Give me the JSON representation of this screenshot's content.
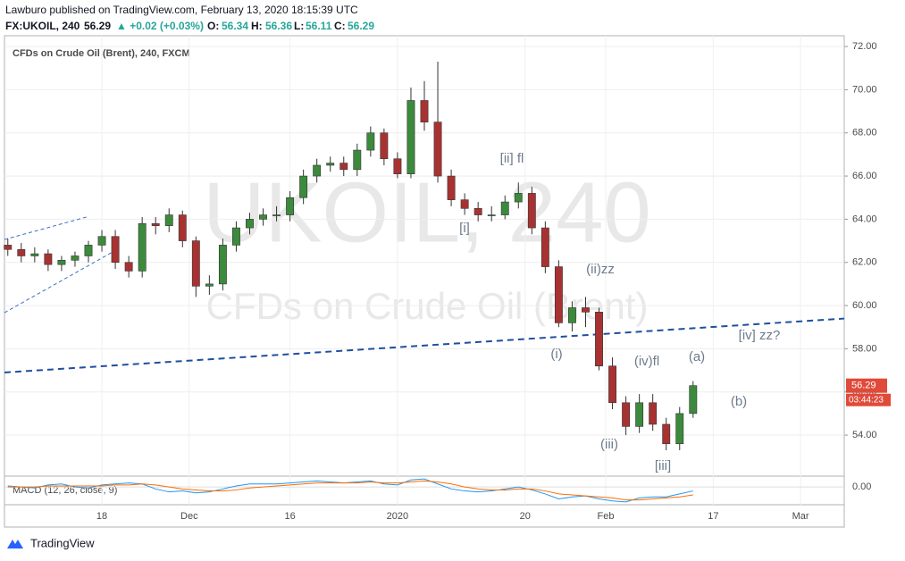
{
  "header": {
    "publisher": "Lawburo published on TradingView.com, February 13, 2020 18:15:39 UTC",
    "symbol": "FX:UKOIL, 240",
    "last": "56.29",
    "change": "▲ +0.02 (+0.03%)",
    "o_label": "O:",
    "open": "56.34",
    "h_label": "H:",
    "high": "56.36",
    "l_label": "L:",
    "low": "56.11",
    "c_label": "C:",
    "close": "56.29"
  },
  "footer": {
    "brand": "TradingView"
  },
  "chart_data": {
    "type": "candlestick",
    "title": "CFDs on Crude Oil (Brent), 240, FXCM",
    "watermark": "UKOIL, 240",
    "watermark_subtitle": "CFDs on Crude Oil (Brent)",
    "countdown": "03:44:23",
    "up_color": "#3c8a3c",
    "down_color": "#a83232",
    "x": [
      4,
      6,
      8,
      10,
      12,
      14,
      16,
      18,
      20,
      22,
      24,
      26,
      28,
      30,
      32,
      34,
      36,
      38,
      40,
      42,
      44,
      46,
      48,
      50,
      52,
      54,
      56,
      58,
      60,
      62,
      64,
      66,
      68,
      70,
      72,
      74,
      76,
      78,
      80,
      82,
      84,
      86,
      88,
      90,
      92,
      94,
      96,
      98,
      100,
      102,
      104,
      106
    ],
    "open": [
      62.8,
      62.6,
      62.3,
      62.4,
      61.9,
      62.1,
      62.3,
      62.8,
      63.2,
      62.0,
      61.6,
      63.8,
      63.7,
      64.2,
      63.0,
      60.9,
      61.0,
      62.8,
      63.6,
      64.0,
      64.2,
      64.2,
      65.0,
      66.0,
      66.5,
      66.6,
      66.3,
      67.2,
      68.0,
      66.8,
      66.1,
      69.5,
      68.5,
      66.0,
      64.9,
      64.5,
      64.2,
      64.2,
      64.8,
      65.2,
      63.6,
      61.8,
      59.2,
      59.9,
      59.7,
      57.2,
      55.5,
      54.4,
      55.5,
      54.5,
      53.6,
      55.0
    ],
    "high": [
      63.1,
      62.9,
      62.7,
      62.6,
      62.3,
      62.5,
      63.0,
      63.5,
      63.5,
      62.3,
      64.1,
      64.1,
      64.5,
      64.4,
      63.2,
      61.4,
      63.1,
      63.9,
      64.3,
      64.5,
      64.6,
      65.3,
      66.3,
      66.8,
      66.9,
      66.9,
      67.5,
      68.3,
      68.2,
      67.1,
      70.1,
      70.4,
      71.3,
      66.3,
      65.2,
      64.8,
      64.6,
      65.1,
      65.7,
      65.5,
      63.9,
      62.1,
      60.2,
      60.4,
      59.9,
      57.6,
      55.8,
      55.9,
      55.9,
      54.8,
      55.3,
      56.5
    ],
    "low": [
      62.3,
      62.0,
      62.0,
      61.6,
      61.6,
      61.8,
      62.0,
      62.5,
      61.7,
      61.3,
      61.3,
      63.3,
      63.4,
      62.7,
      60.4,
      60.5,
      60.7,
      62.5,
      63.3,
      63.7,
      63.9,
      63.9,
      64.7,
      65.7,
      66.2,
      66.0,
      66.0,
      66.9,
      66.5,
      65.9,
      65.9,
      68.1,
      65.7,
      64.6,
      64.2,
      63.9,
      63.9,
      64.0,
      64.5,
      63.3,
      61.5,
      59.0,
      58.8,
      59.0,
      57.0,
      55.2,
      54.0,
      54.1,
      54.2,
      53.3,
      53.3,
      54.8
    ],
    "close": [
      62.6,
      62.3,
      62.4,
      61.9,
      62.1,
      62.3,
      62.8,
      63.2,
      62.0,
      61.6,
      63.8,
      63.7,
      64.2,
      63.0,
      60.9,
      61.0,
      62.8,
      63.6,
      64.0,
      64.2,
      64.2,
      65.0,
      66.0,
      66.5,
      66.6,
      66.3,
      67.2,
      68.0,
      66.8,
      66.1,
      69.5,
      68.5,
      66.0,
      64.9,
      64.5,
      64.2,
      64.2,
      64.8,
      65.2,
      63.6,
      61.8,
      59.2,
      59.9,
      59.7,
      57.2,
      55.5,
      54.4,
      55.5,
      54.5,
      53.6,
      55.0,
      56.29
    ],
    "xlim": [
      3.5,
      128.5
    ],
    "ylim": [
      52.14,
      72.5
    ],
    "xticks": [
      {
        "value": 18,
        "label": "18"
      },
      {
        "value": 31,
        "label": "Dec"
      },
      {
        "value": 46,
        "label": "16"
      },
      {
        "value": 62,
        "label": "2020"
      },
      {
        "value": 81,
        "label": "20"
      },
      {
        "value": 93,
        "label": "Feb"
      },
      {
        "value": 109,
        "label": "17"
      },
      {
        "value": 122,
        "label": "Mar"
      }
    ],
    "yticks": [
      {
        "value": 54,
        "label": "54.00"
      },
      {
        "value": 56,
        "label": "56.00"
      },
      {
        "value": 58,
        "label": "58.00"
      },
      {
        "value": 60,
        "label": "60.00"
      },
      {
        "value": 62,
        "label": "62.00"
      },
      {
        "value": 64,
        "label": "64.00"
      },
      {
        "value": 66,
        "label": "66.00"
      },
      {
        "value": 68,
        "label": "68.00"
      },
      {
        "value": 70,
        "label": "70.00"
      },
      {
        "value": 72,
        "label": "72.00"
      }
    ],
    "grid": true,
    "trendlines": [
      {
        "x": [
          3.5,
          128.5
        ],
        "y": [
          56.9,
          59.4
        ],
        "color": "#1e4fa0"
      },
      {
        "x": [
          3.5,
          15.7
        ],
        "y": [
          63.06,
          64.1
        ],
        "color": "#3b6fc2"
      },
      {
        "x": [
          3.5,
          20.1
        ],
        "y": [
          59.67,
          62.57
        ],
        "color": "#3b6fc2"
      }
    ],
    "annotations": [
      "[ii] fl",
      "[i]",
      "(ii)zz",
      "(i)",
      "(iv)fl",
      "(a)",
      "[iv] zz?",
      "(b)",
      "(iii)",
      "[iii]"
    ],
    "macd": {
      "title": "MACD (12, 26, close, 9)",
      "ylim": [
        -1.6,
        0.9
      ],
      "yticks": [
        {
          "value": 0,
          "label": "0.00"
        }
      ],
      "series": [
        {
          "name": "MACD",
          "color": "#2196f3",
          "values": [
            0.1,
            0.0,
            -0.1,
            0.2,
            0.3,
            0.0,
            -0.1,
            0.2,
            0.3,
            0.4,
            0.3,
            -0.2,
            -0.5,
            -0.4,
            -0.6,
            -0.5,
            -0.2,
            0.1,
            0.3,
            0.3,
            0.3,
            0.4,
            0.5,
            0.6,
            0.5,
            0.4,
            0.5,
            0.6,
            0.3,
            0.2,
            0.7,
            0.8,
            0.3,
            -0.2,
            -0.4,
            -0.5,
            -0.4,
            -0.2,
            0.0,
            -0.3,
            -0.7,
            -1.2,
            -1.0,
            -0.9,
            -1.2,
            -1.4,
            -1.5,
            -1.1,
            -1.0,
            -1.0,
            -0.7,
            -0.4
          ]
        },
        {
          "name": "Signal",
          "color": "#ff6d00",
          "values": [
            0.0,
            0.0,
            0.0,
            0.1,
            0.1,
            0.1,
            0.1,
            0.1,
            0.2,
            0.2,
            0.3,
            0.2,
            0.0,
            -0.2,
            -0.3,
            -0.4,
            -0.4,
            -0.3,
            -0.1,
            0.0,
            0.1,
            0.2,
            0.3,
            0.4,
            0.4,
            0.4,
            0.4,
            0.5,
            0.4,
            0.4,
            0.5,
            0.6,
            0.5,
            0.3,
            0.0,
            -0.2,
            -0.3,
            -0.3,
            -0.2,
            -0.2,
            -0.4,
            -0.7,
            -0.8,
            -0.9,
            -1.0,
            -1.1,
            -1.3,
            -1.3,
            -1.2,
            -1.1,
            -1.0,
            -0.8
          ]
        }
      ]
    }
  }
}
